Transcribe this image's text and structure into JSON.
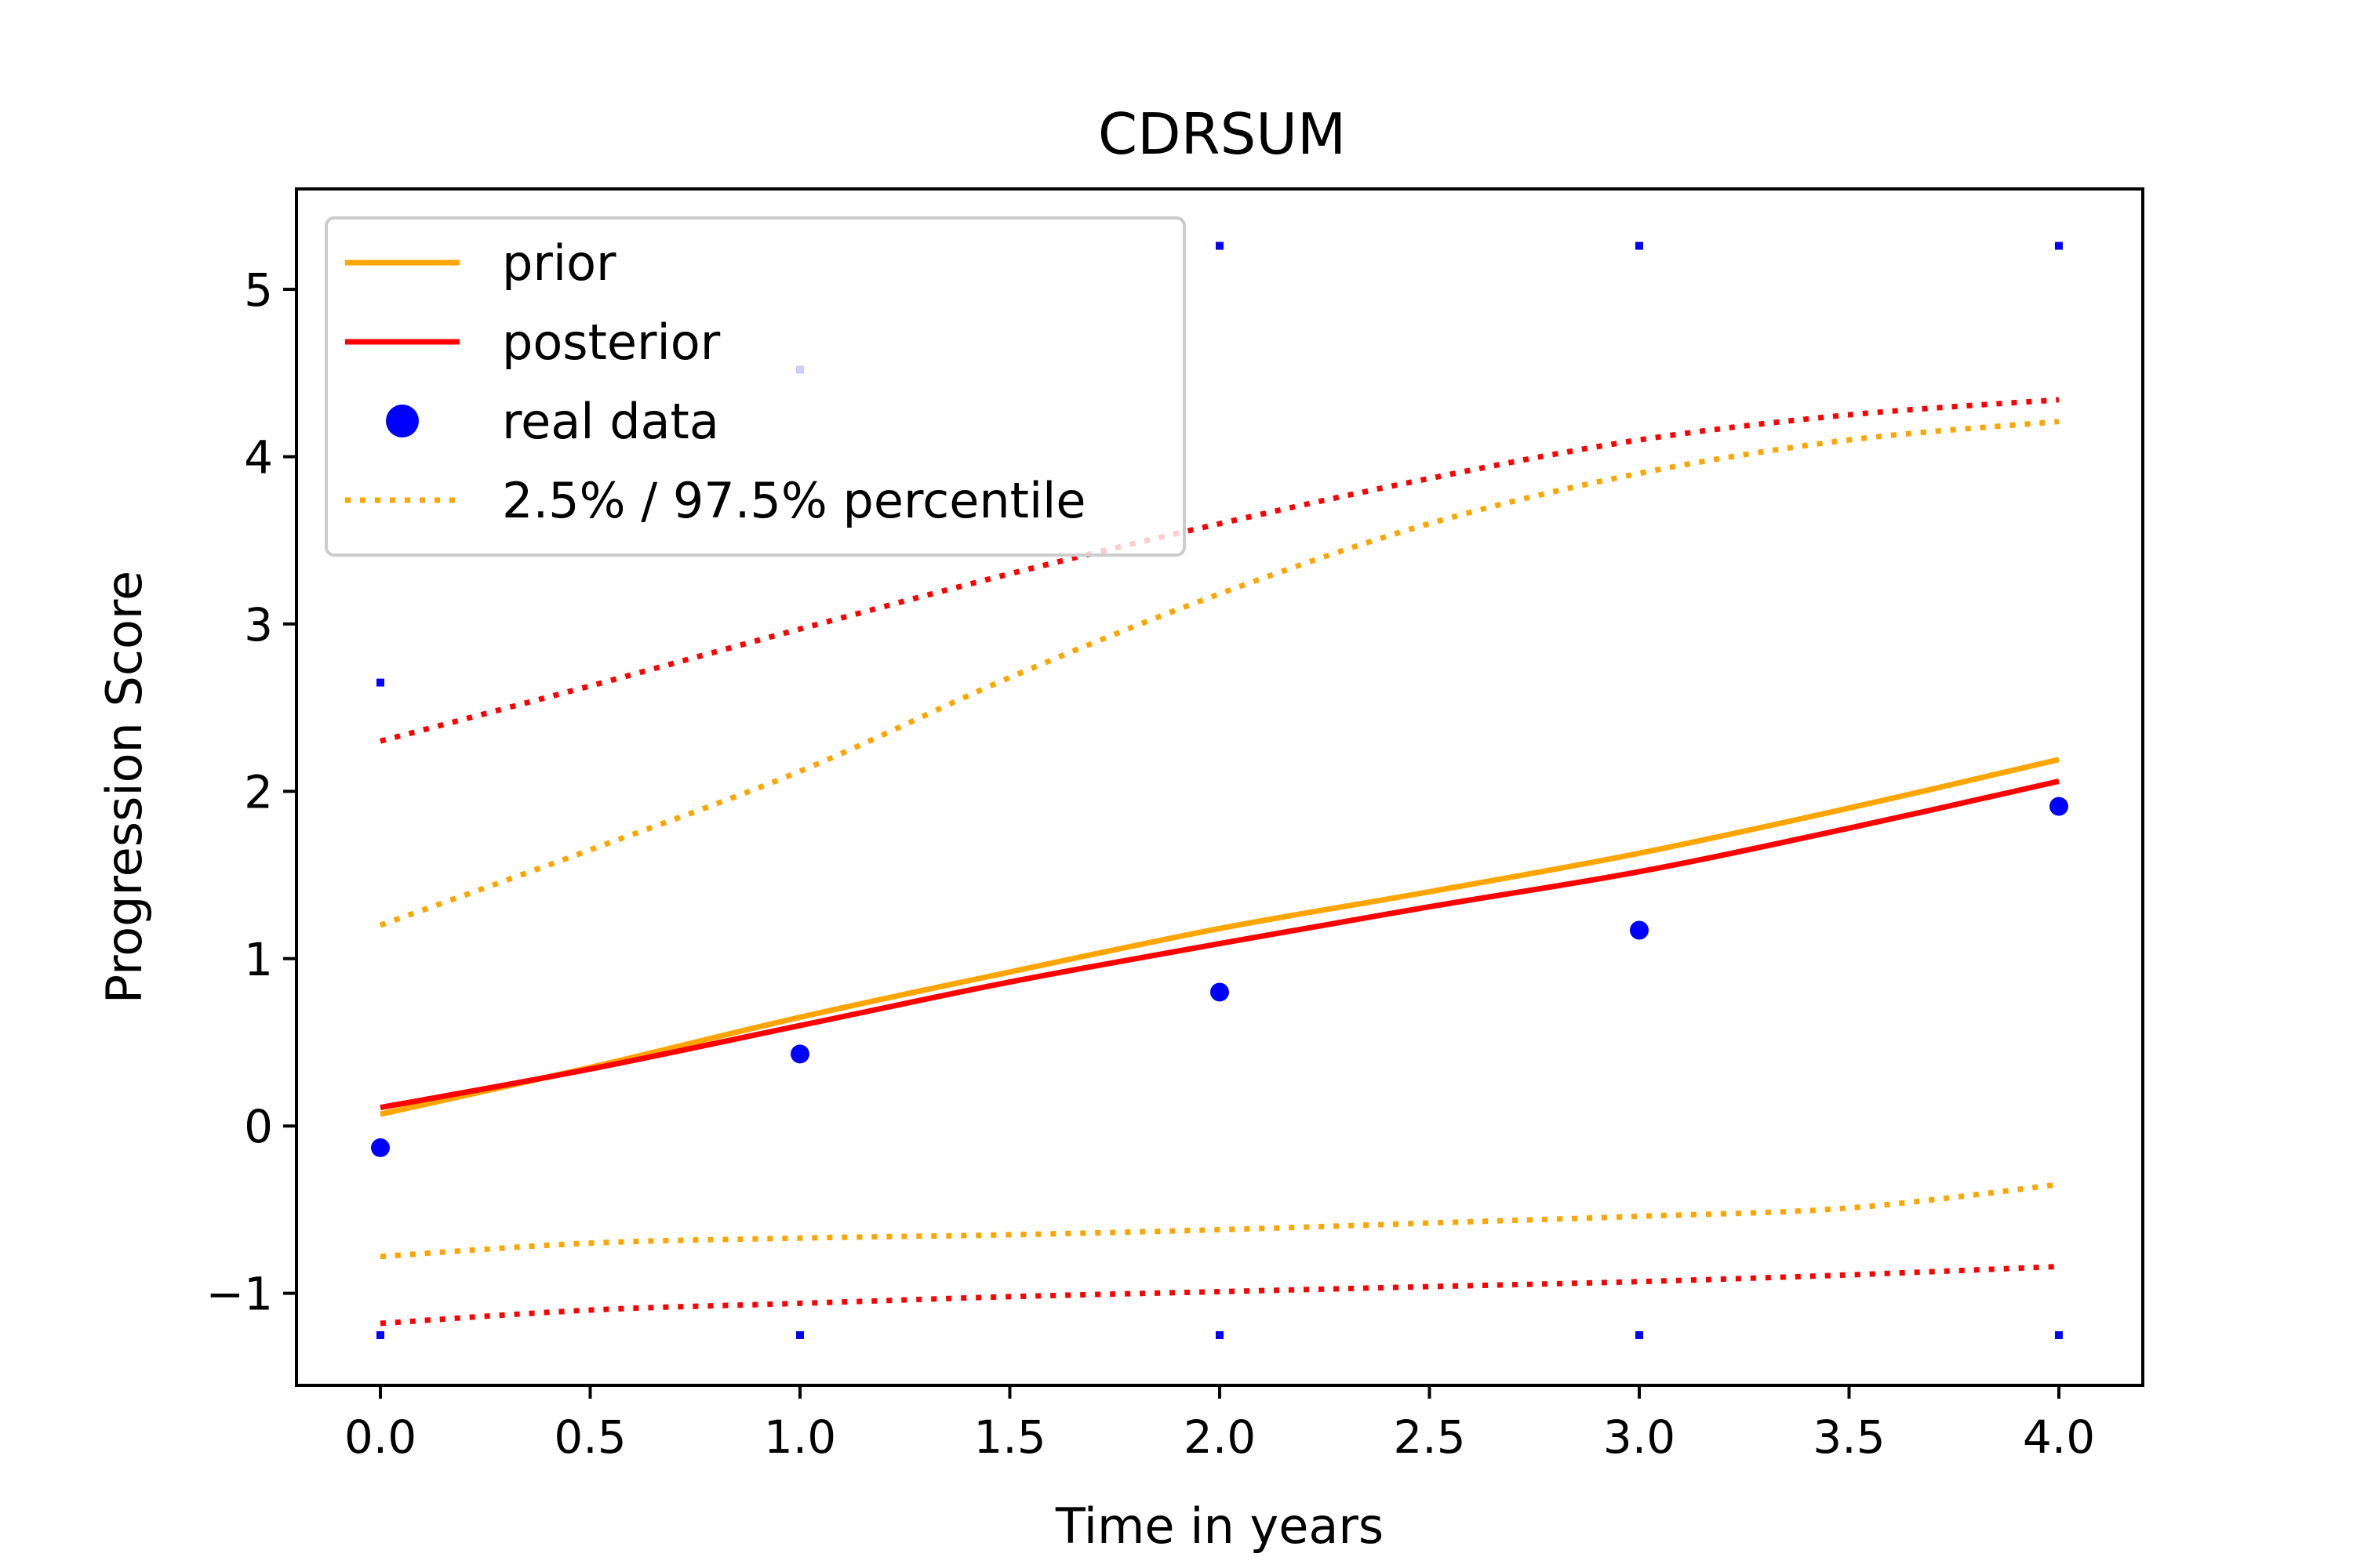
{
  "chart_data": {
    "type": "line",
    "title": "CDRSUM",
    "xlabel": "Time in years",
    "ylabel": "Progression Score",
    "xlim": [
      -0.2,
      4.2
    ],
    "ylim": [
      -1.55,
      5.6
    ],
    "xticks": [
      0.0,
      0.5,
      1.0,
      1.5,
      2.0,
      2.5,
      3.0,
      3.5,
      4.0
    ],
    "xtick_labels": [
      "0.0",
      "0.5",
      "1.0",
      "1.5",
      "2.0",
      "2.5",
      "3.0",
      "3.5",
      "4.0"
    ],
    "yticks": [
      -1,
      0,
      1,
      2,
      3,
      4,
      5
    ],
    "ytick_labels": [
      "−1",
      "0",
      "1",
      "2",
      "3",
      "4",
      "5"
    ],
    "grid": false,
    "legend_position": "top-left",
    "legend": [
      {
        "label": "prior",
        "style": "line",
        "color": "#ffa500"
      },
      {
        "label": "posterior",
        "style": "line",
        "color": "#ff0000"
      },
      {
        "label": "real data",
        "style": "marker",
        "color": "#0000ff"
      },
      {
        "label": "2.5% / 97.5% percentile",
        "style": "dotted",
        "color": "#ffa500"
      }
    ],
    "series": [
      {
        "name": "prior",
        "color": "#ffa500",
        "style": "solid",
        "x": [
          0,
          0.5,
          1,
          1.5,
          2,
          2.5,
          3,
          3.5,
          4
        ],
        "y": [
          0.07,
          0.35,
          0.65,
          0.92,
          1.18,
          1.4,
          1.63,
          1.9,
          2.19
        ]
      },
      {
        "name": "posterior",
        "color": "#ff0000",
        "style": "solid",
        "x": [
          0,
          0.5,
          1,
          1.5,
          2,
          2.5,
          3,
          3.5,
          4
        ],
        "y": [
          0.11,
          0.34,
          0.6,
          0.86,
          1.09,
          1.31,
          1.52,
          1.78,
          2.06
        ]
      },
      {
        "color": "#ffa500",
        "style": "dotted",
        "x": [
          0,
          0.5,
          1,
          1.5,
          2,
          2.5,
          3,
          3.5,
          4
        ],
        "y": [
          1.2,
          1.65,
          2.12,
          2.68,
          3.18,
          3.6,
          3.9,
          4.1,
          4.21
        ]
      },
      {
        "color": "#ffa500",
        "style": "dotted",
        "x": [
          0,
          0.5,
          1,
          1.5,
          2,
          2.5,
          3,
          3.5,
          4
        ],
        "y": [
          -0.78,
          -0.7,
          -0.67,
          -0.65,
          -0.62,
          -0.58,
          -0.54,
          -0.49,
          -0.35
        ]
      },
      {
        "color": "#ff0000",
        "style": "dotted",
        "x": [
          0,
          0.5,
          1,
          1.5,
          2,
          2.5,
          3,
          3.5,
          4
        ],
        "y": [
          2.3,
          2.63,
          2.97,
          3.3,
          3.6,
          3.87,
          4.1,
          4.25,
          4.34
        ]
      },
      {
        "color": "#ff0000",
        "style": "dotted",
        "x": [
          0,
          0.5,
          1,
          1.5,
          2,
          2.5,
          3,
          3.5,
          4
        ],
        "y": [
          -1.18,
          -1.1,
          -1.06,
          -1.02,
          -0.99,
          -0.96,
          -0.93,
          -0.89,
          -0.84
        ]
      }
    ],
    "real_data": {
      "name": "real data",
      "color": "#0000ff",
      "x": [
        0,
        1,
        2,
        3,
        4
      ],
      "y": [
        -0.13,
        0.43,
        0.8,
        1.17,
        1.91
      ]
    },
    "whisker_marks": {
      "color": "#0000ff",
      "points": [
        {
          "x": 0,
          "y": 2.65
        },
        {
          "x": 1,
          "y": 4.52
        },
        {
          "x": 2,
          "y": 5.26
        },
        {
          "x": 3,
          "y": 5.26
        },
        {
          "x": 4,
          "y": 5.26
        },
        {
          "x": 0,
          "y": -1.25
        },
        {
          "x": 1,
          "y": -1.25
        },
        {
          "x": 2,
          "y": -1.25
        },
        {
          "x": 3,
          "y": -1.25
        },
        {
          "x": 4,
          "y": -1.25
        }
      ]
    }
  }
}
